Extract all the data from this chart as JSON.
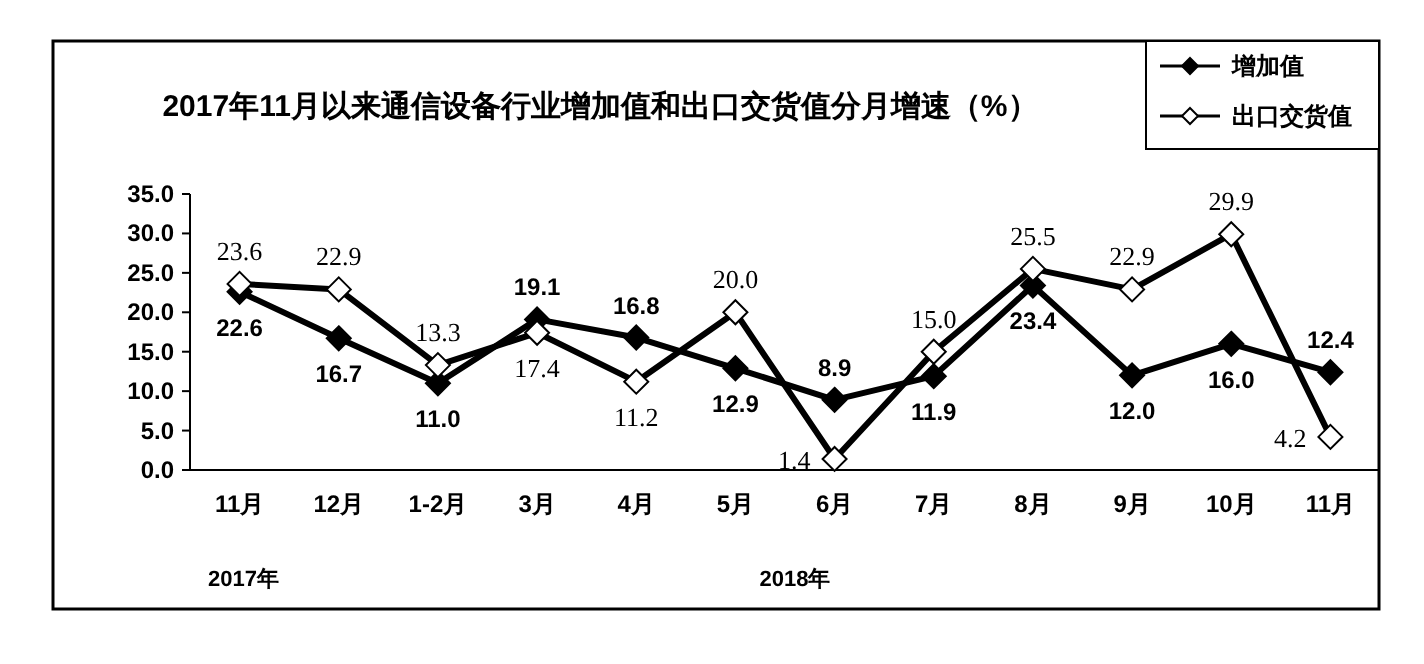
{
  "chart_data": {
    "type": "line",
    "title": "2017年11月以来通信设备行业增加值和出口交货值分月增速（%）",
    "categories": [
      "11月",
      "12月",
      "1-2月",
      "3月",
      "4月",
      "5月",
      "6月",
      "7月",
      "8月",
      "9月",
      "10月",
      "11月"
    ],
    "series": [
      {
        "name": "增加值",
        "color": "#000000",
        "marker": "diamond",
        "values": [
          22.6,
          16.7,
          11.0,
          19.1,
          16.8,
          12.9,
          8.9,
          11.9,
          23.4,
          12.0,
          16.0,
          12.4
        ],
        "value_labels": [
          "22.6",
          "16.7",
          "11.0",
          "19.1",
          "16.8",
          "12.9",
          "8.9",
          "11.9",
          "23.4",
          "12.0",
          "16.0",
          "12.4"
        ]
      },
      {
        "name": "出口交货值",
        "color": "#000000",
        "marker": "diamond_open",
        "values": [
          23.6,
          22.9,
          13.3,
          17.4,
          11.2,
          20.0,
          1.4,
          15.0,
          25.5,
          22.9,
          29.9,
          4.2
        ],
        "value_labels": [
          "23.6",
          "22.9",
          "13.3",
          "17.4",
          "11.2",
          "20.0",
          "1.4",
          "15.0",
          "25.5",
          "22.9",
          "29.9",
          "4.2"
        ]
      }
    ],
    "ylim": [
      0,
      35
    ],
    "yticks": [
      {
        "value": 0,
        "label": "0.0"
      },
      {
        "value": 5,
        "label": "5.0"
      },
      {
        "value": 10,
        "label": "10.0"
      },
      {
        "value": 15,
        "label": "15.0"
      },
      {
        "value": 20,
        "label": "20.0"
      },
      {
        "value": 25,
        "label": "25.0"
      },
      {
        "value": 30,
        "label": "30.0"
      },
      {
        "value": 35,
        "label": "35.0"
      }
    ],
    "grid": false,
    "legend": "top right",
    "line_style": "solid",
    "annotations": [
      "2017年",
      "2018年"
    ]
  }
}
